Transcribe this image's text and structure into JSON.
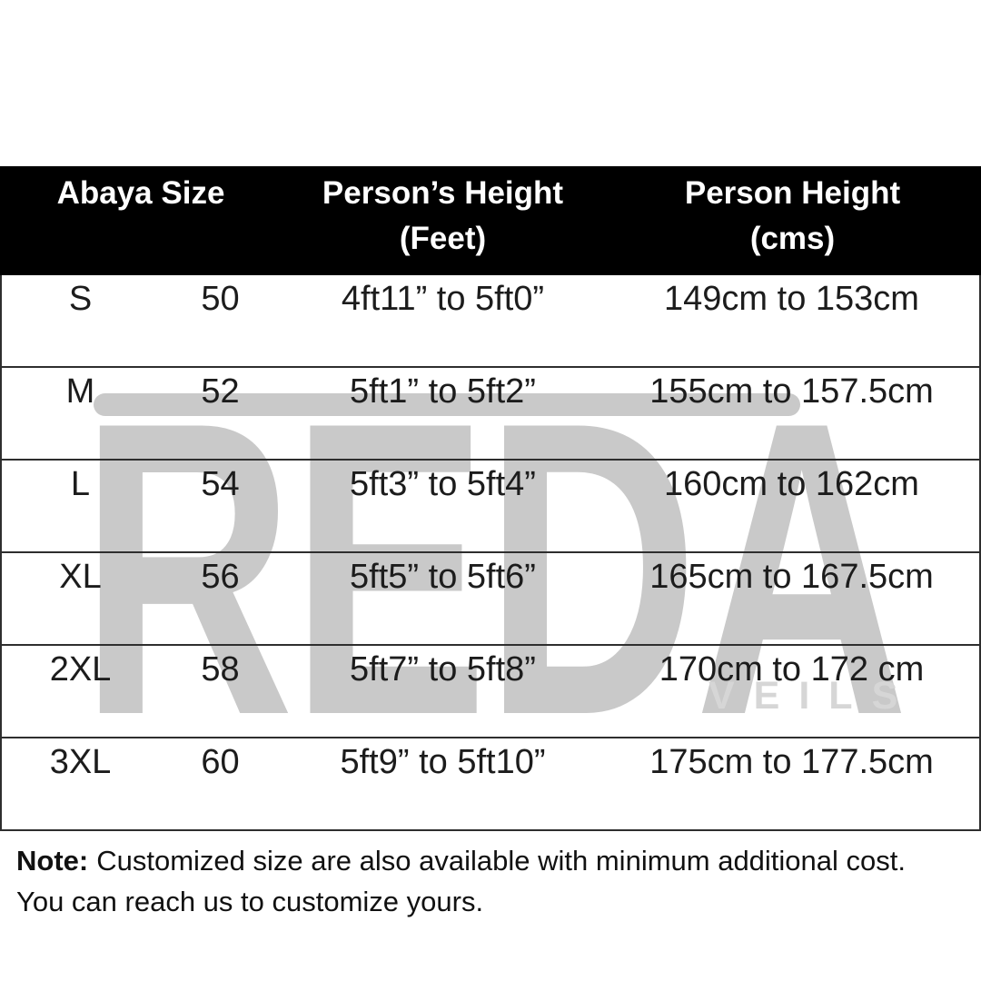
{
  "table": {
    "header": [
      {
        "title": "Abaya Size",
        "subtitle": ""
      },
      {
        "title": "Person’s Height",
        "subtitle": "(Feet)"
      },
      {
        "title": "Person Height",
        "subtitle": "(cms)"
      }
    ],
    "rows": [
      {
        "size": "S",
        "abaya_size": "50",
        "height_feet": "4ft11” to 5ft0”",
        "height_cms": "149cm to 153cm"
      },
      {
        "size": "M",
        "abaya_size": "52",
        "height_feet": "5ft1” to 5ft2”",
        "height_cms": "155cm to 157.5cm"
      },
      {
        "size": "L",
        "abaya_size": "54",
        "height_feet": "5ft3” to 5ft4”",
        "height_cms": "160cm to 162cm"
      },
      {
        "size": "XL",
        "abaya_size": "56",
        "height_feet": "5ft5” to 5ft6”",
        "height_cms": "165cm to 167.5cm"
      },
      {
        "size": "2XL",
        "abaya_size": "58",
        "height_feet": "5ft7” to 5ft8”",
        "height_cms": "170cm to 172 cm"
      },
      {
        "size": "3XL",
        "abaya_size": "60",
        "height_feet": "5ft9” to 5ft10”",
        "height_cms": "175cm to 177.5cm"
      }
    ]
  },
  "note": {
    "label": "Note:",
    "line1": "Customized size are also available with minimum additional cost.",
    "line2": "You can reach us to customize yours."
  },
  "watermark": {
    "brand": "REDA",
    "sub": "VEILS"
  },
  "colors": {
    "background": "#ffffff",
    "header_bg": "#000000",
    "header_text": "#ffffff",
    "body_text": "#1c1c1c",
    "border": "#2e2e2e",
    "watermark": "#c9c9c9",
    "watermark_sub": "#d6d6d6"
  }
}
